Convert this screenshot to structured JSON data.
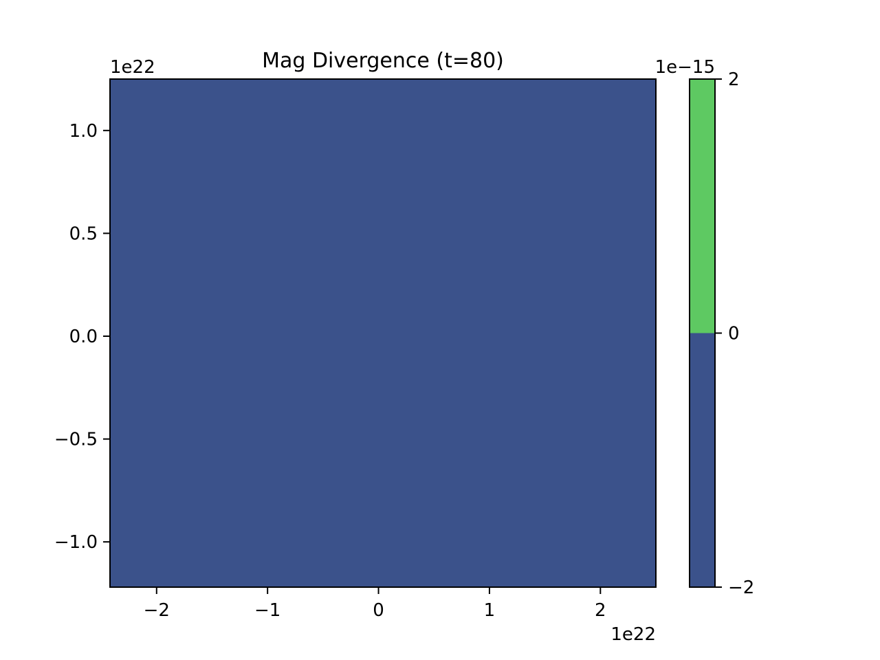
{
  "chart_data": {
    "type": "heatmap",
    "title": "Mag Divergence (t=80)",
    "xlabel": "",
    "ylabel": "",
    "x_offset_label": "1e22",
    "y_offset_label": "1e22",
    "xlim": [
      -2.42,
      2.5
    ],
    "ylim": [
      -1.22,
      1.25
    ],
    "x_ticks": [
      -2,
      -1,
      0,
      1,
      2
    ],
    "x_tick_labels": [
      "−2",
      "−1",
      "0",
      "1",
      "2"
    ],
    "y_ticks": [
      -1.0,
      -0.5,
      0.0,
      0.5,
      1.0
    ],
    "y_tick_labels": [
      "−1.0",
      "−0.5",
      "0.0",
      "0.5",
      "1.0"
    ],
    "field_level": "below 0",
    "field_color": "#3b528b",
    "grid": false,
    "colorbar": {
      "offset_label": "1e−15",
      "ticks": [
        -2,
        0,
        2
      ],
      "tick_labels": [
        "−2",
        "0",
        "2"
      ],
      "range": [
        -2,
        2
      ],
      "levels": [
        {
          "from": -2,
          "to": 0,
          "color": "#3b528b"
        },
        {
          "from": 0,
          "to": 2,
          "color": "#5ec962"
        }
      ]
    }
  }
}
